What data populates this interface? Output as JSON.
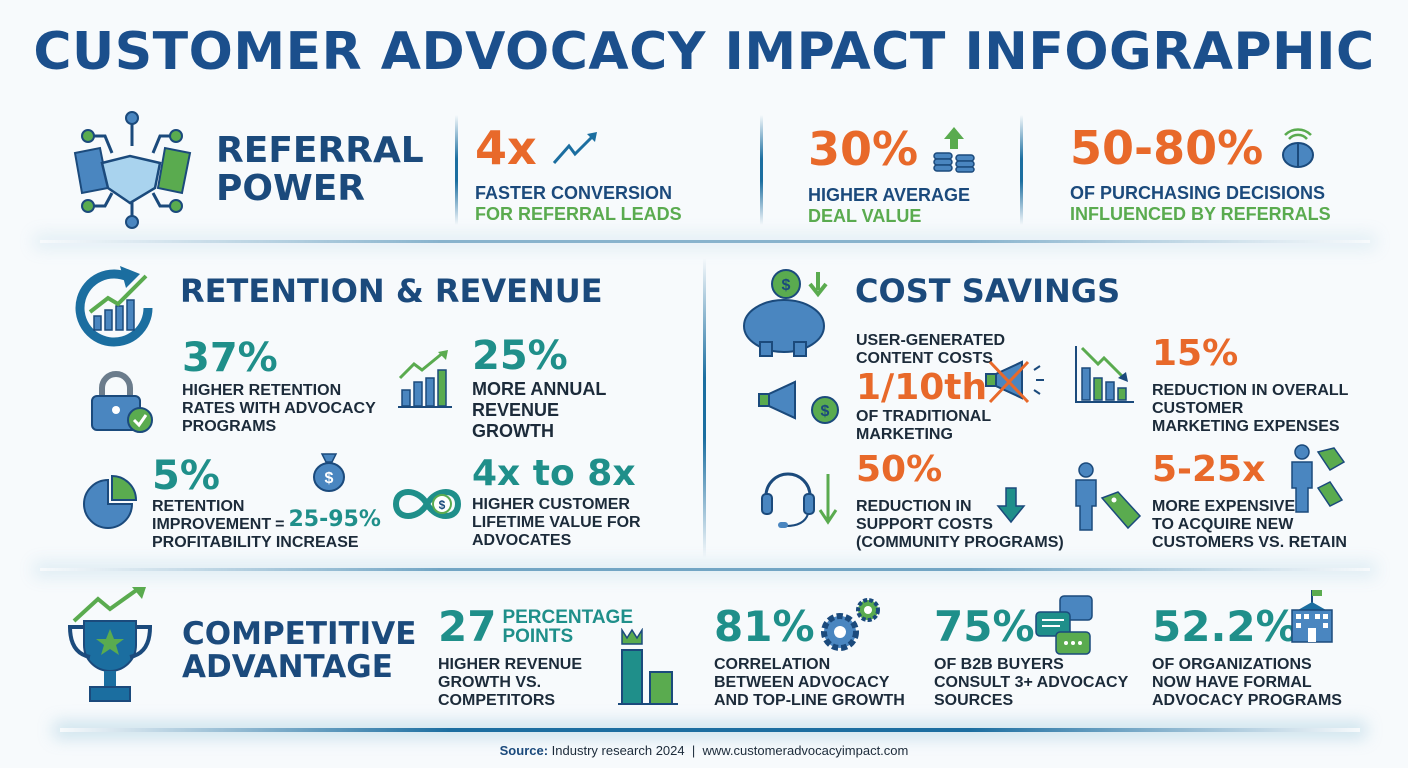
{
  "title": "CUSTOMER ADVOCACY IMPACT INFOGRAPHIC",
  "colors": {
    "navy": "#1b4f8c",
    "orange": "#e8692a",
    "green": "#5aab4f",
    "teal": "#1f8f8a"
  },
  "referral": {
    "heading_1": "REFERRAL",
    "heading_2": "POWER",
    "icon": "handshake-network-icon",
    "stats": [
      {
        "value": "4x",
        "line1": "FASTER CONVERSION",
        "line2": "FOR REFERRAL LEADS",
        "icon": "trend-arrow-icon"
      },
      {
        "value": "30%",
        "line1": "HIGHER AVERAGE",
        "line2": "DEAL VALUE",
        "icon": "coins-up-icon"
      },
      {
        "value": "50-80%",
        "line1": "OF PURCHASING DECISIONS",
        "line2": "INFLUENCED BY REFERRALS",
        "icon": "brain-icon"
      }
    ]
  },
  "retention": {
    "heading": "RETENTION & REVENUE",
    "s1": {
      "value": "37%",
      "l1": "HIGHER RETENTION",
      "l2": "RATES WITH ADVOCACY",
      "l3": "PROGRAMS"
    },
    "s2": {
      "value": "25%",
      "l1": "MORE ANNUAL",
      "l2": "REVENUE",
      "l3": "GROWTH"
    },
    "s3": {
      "value": "5%",
      "l1": "RETENTION",
      "l2": "IMPROVEMENT",
      "eq": "=",
      "result": "25-95%",
      "l3": "PROFITABILITY INCREASE"
    },
    "s4": {
      "value": "4x to 8x",
      "l1": "HIGHER CUSTOMER",
      "l2": "LIFETIME VALUE FOR",
      "l3": "ADVOCATES"
    }
  },
  "cost": {
    "heading": "COST SAVINGS",
    "s1": {
      "pre1": "USER-GENERATED",
      "pre2": "CONTENT COSTS",
      "value": "1/10th",
      "l1": "OF TRADITIONAL",
      "l2": "MARKETING"
    },
    "s2": {
      "value": "15%",
      "l1": "REDUCTION IN OVERALL",
      "l2": "CUSTOMER",
      "l3": "MARKETING EXPENSES"
    },
    "s3": {
      "value": "50%",
      "l1": "REDUCTION IN",
      "l2": "SUPPORT COSTS",
      "l3": "(COMMUNITY PROGRAMS)"
    },
    "s4": {
      "value": "5-25x",
      "l1": "MORE EXPENSIVE",
      "l2": "TO ACQUIRE NEW",
      "l3": "CUSTOMERS VS. RETAIN"
    }
  },
  "competitive": {
    "heading_1": "COMPETITIVE",
    "heading_2": "ADVANTAGE",
    "s1": {
      "value": "27",
      "unit1": "PERCENTAGE",
      "unit2": "POINTS",
      "l1": "HIGHER REVENUE",
      "l2": "GROWTH VS.",
      "l3": "COMPETITORS"
    },
    "s2": {
      "value": "81%",
      "l1": "CORRELATION",
      "l2": "BETWEEN ADVOCACY",
      "l3": "AND TOP-LINE GROWTH"
    },
    "s3": {
      "value": "75%",
      "l1": "OF B2B BUYERS",
      "l2": "CONSULT 3+ ADVOCACY",
      "l3": "SOURCES"
    },
    "s4": {
      "value": "52.2%",
      "l1": "OF ORGANIZATIONS",
      "l2": "NOW HAVE FORMAL",
      "l3": "ADVOCACY PROGRAMS"
    }
  },
  "footer": {
    "source_label": "Source:",
    "source_text": " Industry research 2024  |  www.customeradvocacyimpact.com"
  }
}
